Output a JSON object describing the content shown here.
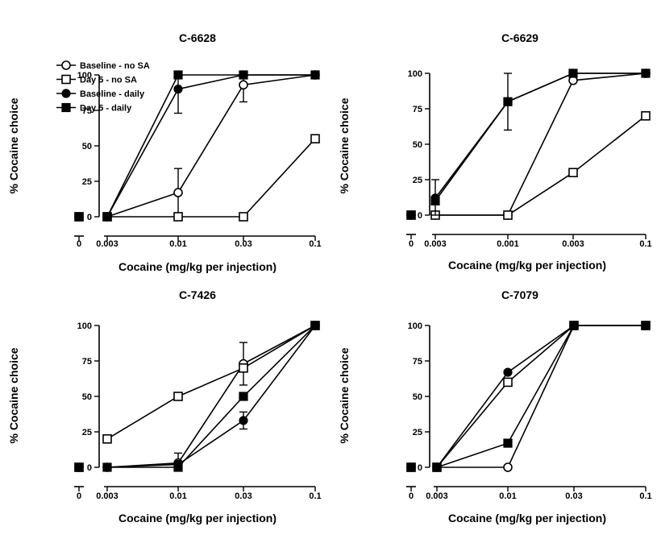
{
  "chart_data": [
    {
      "type": "line",
      "title": "C-6628",
      "xlabel": "Cocaine (mg/kg per injection)",
      "ylabel": "% Cocaine choice",
      "ylim": [
        0,
        100
      ],
      "y_ticks": [
        "0",
        "25",
        "50",
        "75",
        "100"
      ],
      "zero_label": "0",
      "x_categories": [
        "0.003",
        "0.01",
        "0.03",
        "0.1"
      ],
      "legend": {
        "placement": "top-left",
        "entries": [
          "Baseline - no SA",
          "Day 5 - no SA",
          "Baseline - daily",
          "Day 5 - daily"
        ]
      },
      "series": [
        {
          "name": "Baseline - no SA",
          "marker": "open-circle",
          "zero": 0,
          "values": [
            0,
            17,
            93,
            100
          ],
          "err": [
            null,
            17,
            12,
            null
          ]
        },
        {
          "name": "Day 5 - no SA",
          "marker": "open-square",
          "zero": 0,
          "values": [
            0,
            0,
            0,
            55
          ],
          "err": [
            null,
            null,
            null,
            null
          ]
        },
        {
          "name": "Baseline - daily",
          "marker": "filled-circle",
          "zero": 0,
          "values": [
            0,
            90,
            100,
            100
          ],
          "err": [
            null,
            17,
            null,
            null
          ]
        },
        {
          "name": "Day 5 - daily",
          "marker": "filled-square",
          "zero": 0,
          "values": [
            0,
            100,
            100,
            100
          ],
          "err": [
            null,
            null,
            null,
            null
          ]
        }
      ]
    },
    {
      "type": "line",
      "title": "C-6629",
      "xlabel": "Cocaine (mg/kg per injection)",
      "ylabel": "% Cocaine choice",
      "ylim": [
        0,
        100
      ],
      "y_ticks": [
        "0",
        "25",
        "50",
        "75",
        "100"
      ],
      "zero_label": "0",
      "x_categories": [
        "0.003",
        "0.001",
        "0.003",
        "0.1"
      ],
      "series": [
        {
          "name": "Baseline - no SA",
          "marker": "open-circle",
          "zero": 0,
          "values": [
            0,
            0,
            95,
            100
          ],
          "err": [
            null,
            null,
            null,
            null
          ]
        },
        {
          "name": "Day 5 - no SA",
          "marker": "open-square",
          "zero": 0,
          "values": [
            0,
            0,
            30,
            70
          ],
          "err": [
            null,
            null,
            null,
            null
          ]
        },
        {
          "name": "Baseline - daily",
          "marker": "filled-circle",
          "zero": 0,
          "values": [
            12,
            80,
            100,
            100
          ],
          "err": [
            13,
            null,
            null,
            null
          ]
        },
        {
          "name": "Day 5 - daily",
          "marker": "filled-square",
          "zero": 0,
          "values": [
            10,
            80,
            100,
            100
          ],
          "err": [
            null,
            20,
            null,
            null
          ]
        }
      ]
    },
    {
      "type": "line",
      "title": "C-7426",
      "xlabel": "Cocaine (mg/kg per injection)",
      "ylabel": "% Cocaine choice",
      "ylim": [
        0,
        100
      ],
      "y_ticks": [
        "0",
        "25",
        "50",
        "75",
        "100"
      ],
      "zero_label": "0",
      "x_categories": [
        "0.003",
        "0.01",
        "0.03",
        "0.1"
      ],
      "series": [
        {
          "name": "Baseline - no SA",
          "marker": "open-circle",
          "zero": 0,
          "values": [
            0,
            3,
            73,
            100
          ],
          "err": [
            null,
            7,
            15,
            null
          ]
        },
        {
          "name": "Day 5 - no SA",
          "marker": "open-square",
          "zero": 0,
          "values": [
            20,
            50,
            70,
            100
          ],
          "err": [
            null,
            null,
            null,
            null
          ]
        },
        {
          "name": "Baseline - daily",
          "marker": "filled-circle",
          "zero": 0,
          "values": [
            0,
            2,
            33,
            100
          ],
          "err": [
            null,
            null,
            6,
            null
          ]
        },
        {
          "name": "Day 5 - daily",
          "marker": "filled-square",
          "zero": 0,
          "values": [
            0,
            0,
            50,
            100
          ],
          "err": [
            null,
            null,
            null,
            null
          ]
        }
      ]
    },
    {
      "type": "line",
      "title": "C-7079",
      "xlabel": "Cocaine (mg/kg per injection)",
      "ylabel": "% Cocaine choice",
      "ylim": [
        0,
        100
      ],
      "y_ticks": [
        "0",
        "25",
        "50",
        "75",
        "100"
      ],
      "zero_label": "0",
      "x_categories": [
        "0.003",
        "0.01",
        "0.03",
        "0.1"
      ],
      "series": [
        {
          "name": "Baseline - no SA",
          "marker": "open-circle",
          "zero": 0,
          "values": [
            0,
            0,
            100,
            100
          ],
          "err": [
            null,
            null,
            null,
            null
          ]
        },
        {
          "name": "Day 5 - no SA",
          "marker": "open-square",
          "zero": 0,
          "values": [
            0,
            60,
            100,
            100
          ],
          "err": [
            null,
            null,
            null,
            null
          ]
        },
        {
          "name": "Baseline - daily",
          "marker": "filled-circle",
          "zero": 0,
          "values": [
            0,
            67,
            100,
            100
          ],
          "err": [
            null,
            null,
            null,
            null
          ]
        },
        {
          "name": "Day 5 - daily",
          "marker": "filled-square",
          "zero": 0,
          "values": [
            0,
            17,
            100,
            100
          ],
          "err": [
            null,
            null,
            null,
            null
          ]
        }
      ]
    }
  ]
}
